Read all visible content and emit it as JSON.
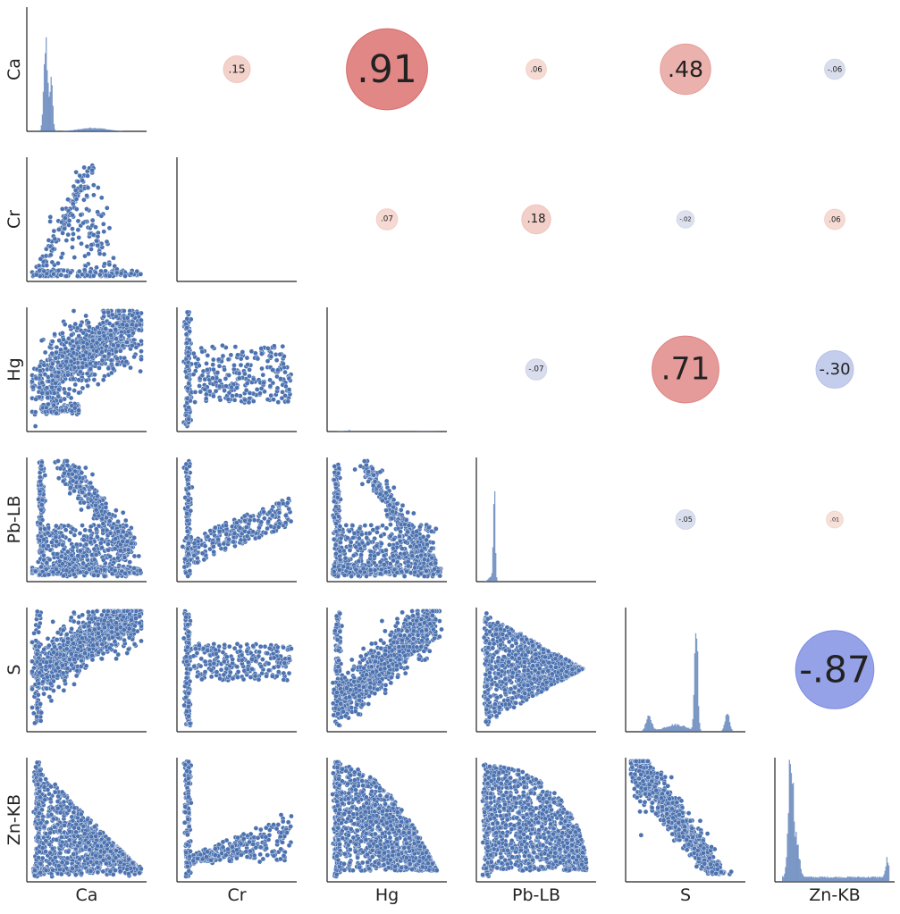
{
  "chart_data": {
    "type": "pairplot",
    "variables": [
      "Ca",
      "Cr",
      "Hg",
      "Pb-LB",
      "S",
      "Zn-KB"
    ],
    "grid": false,
    "colors": {
      "point": "#4c72b0",
      "point_edge": "#ffffff",
      "histogram": "#4c72b0",
      "positive_strong": "#d65f5f",
      "positive_weak": "#f4d9cf",
      "negative_strong": "#6f7fe0",
      "negative_weak": "#d6dcea",
      "axis": "#222222"
    },
    "lower": {
      "type": "scatter"
    },
    "diagonal": {
      "type": "histogram"
    },
    "upper": {
      "type": "correlation_bubbles",
      "cells": [
        {
          "row": "Ca",
          "col": "Cr",
          "r": 0.15,
          "label": ".15"
        },
        {
          "row": "Ca",
          "col": "Hg",
          "r": 0.91,
          "label": ".91"
        },
        {
          "row": "Ca",
          "col": "Pb-LB",
          "r": 0.06,
          "label": ".06"
        },
        {
          "row": "Ca",
          "col": "S",
          "r": 0.48,
          "label": ".48"
        },
        {
          "row": "Ca",
          "col": "Zn-KB",
          "r": -0.06,
          "label": "-.06"
        },
        {
          "row": "Cr",
          "col": "Hg",
          "r": 0.07,
          "label": ".07"
        },
        {
          "row": "Cr",
          "col": "Pb-LB",
          "r": 0.18,
          "label": ".18"
        },
        {
          "row": "Cr",
          "col": "S",
          "r": -0.02,
          "label": "-.02"
        },
        {
          "row": "Cr",
          "col": "Zn-KB",
          "r": 0.06,
          "label": ".06"
        },
        {
          "row": "Hg",
          "col": "Pb-LB",
          "r": -0.07,
          "label": "-.07"
        },
        {
          "row": "Hg",
          "col": "S",
          "r": 0.71,
          "label": ".71"
        },
        {
          "row": "Hg",
          "col": "Zn-KB",
          "r": -0.3,
          "label": "-.30"
        },
        {
          "row": "Pb-LB",
          "col": "S",
          "r": -0.05,
          "label": "-.05"
        },
        {
          "row": "Pb-LB",
          "col": "Zn-KB",
          "r": 0.01,
          "label": ".01"
        },
        {
          "row": "S",
          "col": "Zn-KB",
          "r": -0.87,
          "label": "-.87"
        }
      ]
    }
  }
}
